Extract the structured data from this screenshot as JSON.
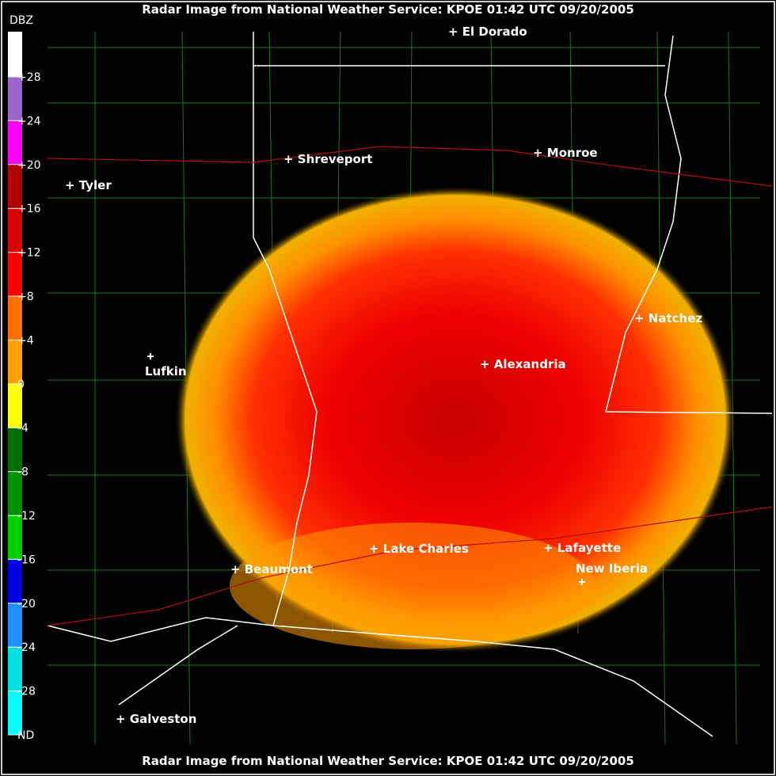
{
  "header": {
    "title": "Radar Image from National Weather Service: KPOE   01:42 UTC  09/20/2005"
  },
  "footer": {
    "title": "Radar Image from National Weather Service: KPOE   01:42 UTC  09/20/2005"
  },
  "legend": {
    "title": "DBZ",
    "items": [
      {
        "label": "+28",
        "color": "#9966cc"
      },
      {
        "label": "+24",
        "color": "#ff00ff"
      },
      {
        "label": "+20",
        "color": "#b00000"
      },
      {
        "label": "+16",
        "color": "#d80000"
      },
      {
        "label": "+12",
        "color": "#ff0000"
      },
      {
        "label": "+8",
        "color": "#ff7000"
      },
      {
        "label": "+4",
        "color": "#ffa000"
      },
      {
        "label": "0",
        "color": "#ffff00"
      },
      {
        "label": "-4",
        "color": "#007000"
      },
      {
        "label": "-8",
        "color": "#009000"
      },
      {
        "label": "-12",
        "color": "#00d000"
      },
      {
        "label": "-16",
        "color": "#0000e0"
      },
      {
        "label": "-20",
        "color": "#1e90ff"
      },
      {
        "label": "-24",
        "color": "#00e0e0"
      },
      {
        "label": "-28",
        "color": "#00ffff"
      },
      {
        "label": "ND",
        "color": "#000000"
      }
    ]
  },
  "cities": [
    "El Dorado",
    "Shreveport",
    "Monroe",
    "Tyler",
    "Natchez",
    "Lufkin",
    "Alexandria",
    "Lake Charles",
    "Lafayette",
    "Beaumont",
    "New Iberia",
    "Galveston"
  ]
}
